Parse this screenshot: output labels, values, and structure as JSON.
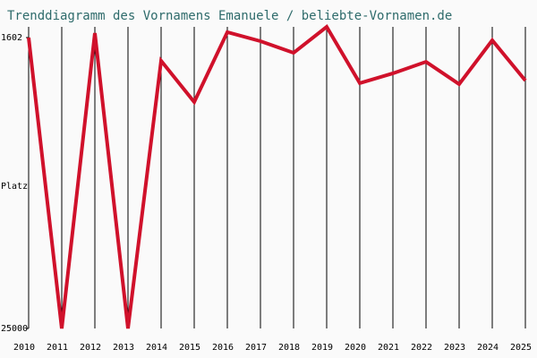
{
  "chart_data": {
    "type": "line",
    "title": "Trenddiagramm des Vornamens Emanuele / beliebte-Vornamen.de",
    "y_label": "Platz",
    "x": [
      2010,
      2011,
      2012,
      2013,
      2014,
      2015,
      2016,
      2017,
      2018,
      2019,
      2020,
      2021,
      2022,
      2023,
      2024,
      2025
    ],
    "xlim": [
      2010,
      2025
    ],
    "xticks": [
      2010,
      2011,
      2012,
      2013,
      2014,
      2015,
      2016,
      2017,
      2018,
      2019,
      2020,
      2021,
      2022,
      2023,
      2024,
      2025
    ],
    "series": [
      {
        "name": "Emanuele",
        "color": "#d0112b",
        "values": [
          1602,
          25000,
          1240,
          25000,
          3470,
          6790,
          1170,
          1890,
          2830,
          740,
          5270,
          4480,
          3550,
          5350,
          1820,
          5060
        ]
      }
    ],
    "ylim": [
      25000,
      740
    ],
    "yticks": [
      1602,
      25000
    ],
    "grid": true
  }
}
